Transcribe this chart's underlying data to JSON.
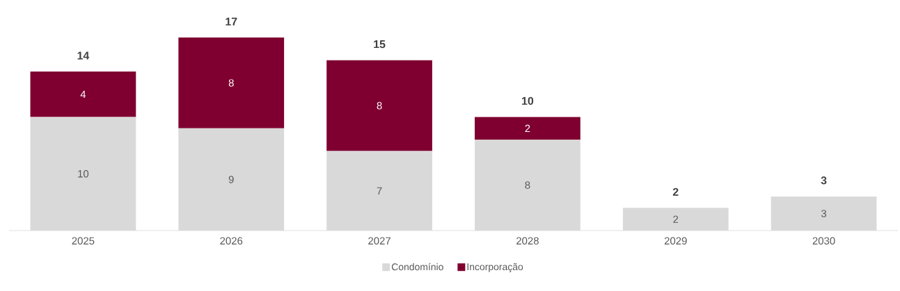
{
  "chart_data": {
    "type": "bar",
    "stacked": true,
    "categories": [
      "2025",
      "2026",
      "2027",
      "2028",
      "2029",
      "2030"
    ],
    "series": [
      {
        "name": "Condomínio",
        "color": "#d9d9d9",
        "values": [
          10,
          9,
          7,
          8,
          2,
          3
        ]
      },
      {
        "name": "Incorporação",
        "color": "#7f0030",
        "values": [
          4,
          8,
          8,
          2,
          null,
          null
        ]
      }
    ],
    "data_labels": true,
    "totals": [
      "14",
      "17",
      "15",
      "10",
      "2",
      "3"
    ],
    "legend": "bottom",
    "tick_labels": "x"
  }
}
